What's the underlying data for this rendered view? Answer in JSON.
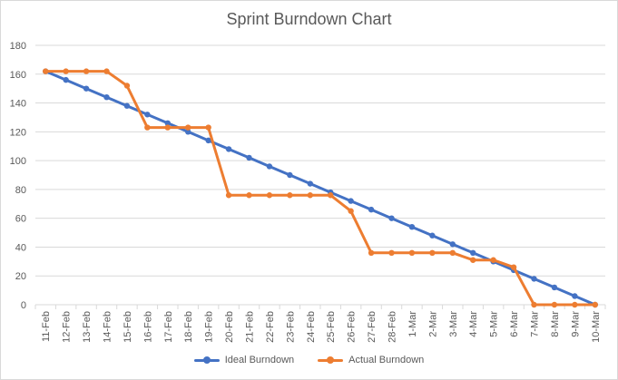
{
  "chart_data": {
    "type": "line",
    "title": "Sprint Burndown Chart",
    "xlabel": "",
    "ylabel": "",
    "ylim": [
      0,
      180
    ],
    "yticks": [
      0,
      20,
      40,
      60,
      80,
      100,
      120,
      140,
      160,
      180
    ],
    "grid": true,
    "legend": "bottom",
    "categories": [
      "11-Feb",
      "12-Feb",
      "13-Feb",
      "14-Feb",
      "15-Feb",
      "16-Feb",
      "17-Feb",
      "18-Feb",
      "19-Feb",
      "20-Feb",
      "21-Feb",
      "22-Feb",
      "23-Feb",
      "24-Feb",
      "25-Feb",
      "26-Feb",
      "27-Feb",
      "28-Feb",
      "1-Mar",
      "2-Mar",
      "3-Mar",
      "4-Mar",
      "5-Mar",
      "6-Mar",
      "7-Mar",
      "8-Mar",
      "9-Mar",
      "10-Mar"
    ],
    "series": [
      {
        "name": "Ideal Burndown",
        "color": "#4472c4",
        "values": [
          162,
          156,
          150,
          144,
          138,
          132,
          126,
          120,
          114,
          108,
          102,
          96,
          90,
          84,
          78,
          72,
          66,
          60,
          54,
          48,
          42,
          36,
          30,
          24,
          18,
          12,
          6,
          0
        ]
      },
      {
        "name": "Actual Burndown",
        "color": "#ed7d31",
        "values": [
          162,
          162,
          162,
          162,
          152,
          123,
          123,
          123,
          123,
          76,
          76,
          76,
          76,
          76,
          76,
          65,
          36,
          36,
          36,
          36,
          36,
          31,
          31,
          26,
          0,
          0,
          0,
          0
        ]
      }
    ]
  }
}
